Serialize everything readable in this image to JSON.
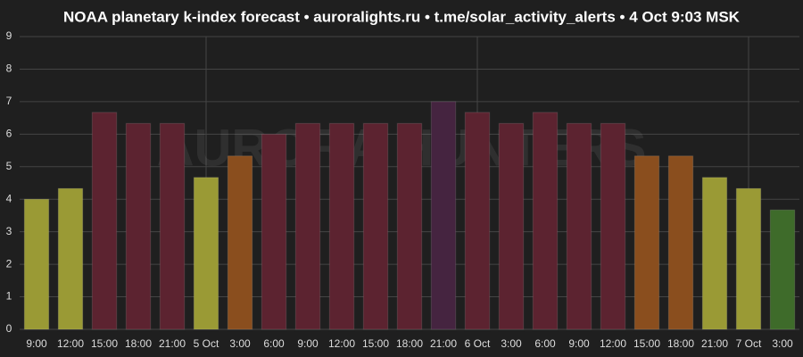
{
  "chart_data": {
    "type": "bar",
    "title": "NOAA planetary k-index forecast • auroralights.ru • t.me/solar_activity_alerts • 4 Oct 9:03 MSK",
    "watermark": "AURORA HUNTERS",
    "categories": [
      "9:00",
      "12:00",
      "15:00",
      "18:00",
      "21:00",
      "5 Oct",
      "3:00",
      "6:00",
      "9:00",
      "12:00",
      "15:00",
      "18:00",
      "21:00",
      "6 Oct",
      "3:00",
      "6:00",
      "9:00",
      "12:00",
      "15:00",
      "18:00",
      "21:00",
      "7 Oct",
      "3:00"
    ],
    "values": [
      4,
      4.33,
      6.67,
      6.33,
      6.33,
      4.67,
      5.33,
      6,
      6.33,
      6.33,
      6.33,
      6.33,
      7,
      6.67,
      6.33,
      6.67,
      6.33,
      6.33,
      5.33,
      5.33,
      4.67,
      4.33,
      3.67
    ],
    "colors": [
      "#9a9a35",
      "#9a9a35",
      "#5c2330",
      "#5c2330",
      "#5c2330",
      "#9a9a35",
      "#8a4e1e",
      "#5c2330",
      "#5c2330",
      "#5c2330",
      "#5c2330",
      "#5c2330",
      "#452440",
      "#5c2330",
      "#5c2330",
      "#5c2330",
      "#5c2330",
      "#5c2330",
      "#8a4e1e",
      "#8a4e1e",
      "#9a9a35",
      "#9a9a35",
      "#3e6b2a"
    ],
    "ylim": [
      0,
      9
    ],
    "yticks": [
      0,
      1,
      2,
      3,
      4,
      5,
      6,
      7,
      8,
      9
    ],
    "grid": true
  }
}
